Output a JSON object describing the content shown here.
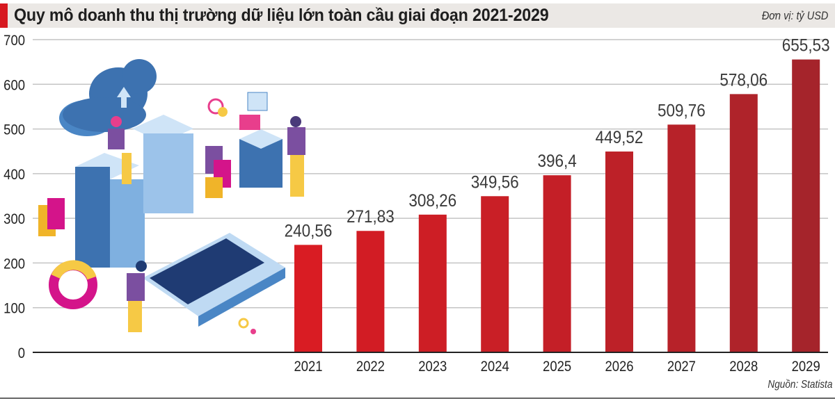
{
  "chart_data": {
    "type": "bar",
    "title": "Quy mô doanh thu thị trường dữ liệu lớn toàn cầu giai đoạn 2021-2029",
    "unit": "Đơn vị: tỷ USD",
    "source": "Nguồn: Statista",
    "categories": [
      "2021",
      "2022",
      "2023",
      "2024",
      "2025",
      "2026",
      "2027",
      "2028",
      "2029"
    ],
    "values": [
      240.56,
      271.83,
      308.26,
      349.56,
      396.4,
      449.52,
      509.76,
      578.06,
      655.53
    ],
    "value_labels": [
      "240,56",
      "271,83",
      "308,26",
      "349,56",
      "396,4",
      "449,52",
      "509,76",
      "578,06",
      "655,53"
    ],
    "yticks": [
      0,
      100,
      200,
      300,
      400,
      500,
      600,
      700
    ],
    "ylim": [
      0,
      700
    ],
    "grid": true,
    "colors": [
      "#d91c23",
      "#d21c24",
      "#cd1e25",
      "#c91f26",
      "#c41f27",
      "#bd2128",
      "#b72229",
      "#af232a",
      "#a5242b"
    ]
  }
}
